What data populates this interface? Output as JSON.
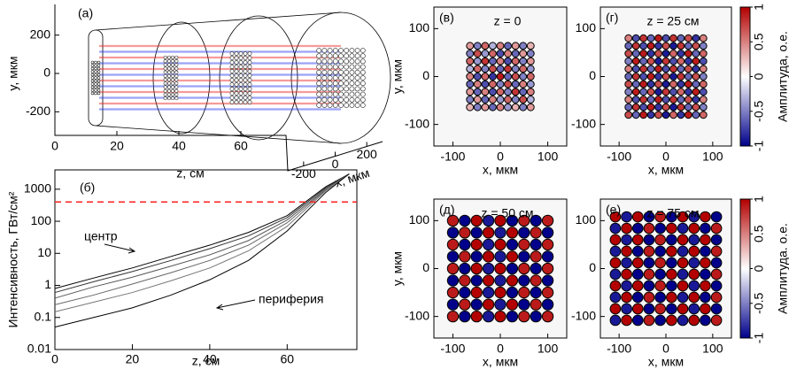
{
  "chart_data": [
    {
      "type": "schematic",
      "panel": "(а)",
      "ylabel": "y, мкм",
      "zlabel": "z, см",
      "xlabel": "x, мкм",
      "ylim": [
        -300,
        300
      ],
      "yticks": [
        -200,
        0,
        200
      ],
      "zlim": [
        0,
        76
      ],
      "zticks": [
        0,
        20,
        40,
        60
      ],
      "xlim": [
        -300,
        300
      ],
      "xticks": [
        -200,
        0,
        200
      ]
    },
    {
      "type": "line",
      "panel": "(б)",
      "xlabel": "z, см",
      "ylabel": "Интенсивность, ГВт/см²",
      "log_y": true,
      "xlim": [
        0,
        78
      ],
      "xticks": [
        0,
        20,
        40,
        60
      ],
      "ylim": [
        0.01,
        4000
      ],
      "yticks": [
        0.01,
        0.1,
        1,
        10,
        100,
        1000
      ],
      "x": [
        0,
        10,
        20,
        30,
        40,
        50,
        60,
        70,
        76
      ],
      "series": [
        {
          "color": "#000000",
          "values": [
            0.8,
            1.7,
            3.5,
            8,
            18,
            45,
            150,
            1200,
            3000
          ]
        },
        {
          "color": "#333333",
          "values": [
            0.6,
            1.3,
            2.7,
            6,
            14,
            35,
            130,
            1100,
            3000
          ]
        },
        {
          "color": "#555555",
          "values": [
            0.4,
            0.9,
            1.8,
            4,
            9,
            25,
            110,
            1000,
            3000
          ]
        },
        {
          "color": "#666666",
          "values": [
            0.25,
            0.5,
            1.1,
            2.5,
            6,
            18,
            90,
            950,
            3000
          ]
        },
        {
          "color": "#777777",
          "values": [
            0.15,
            0.3,
            0.6,
            1.4,
            3.5,
            12,
            70,
            900,
            3000
          ]
        },
        {
          "color": "#000000",
          "values": [
            0.05,
            0.1,
            0.2,
            0.5,
            1.5,
            6,
            50,
            800,
            3000
          ]
        }
      ],
      "threshold": {
        "value": 400,
        "color": "#ff2020"
      },
      "annotations": [
        "центр",
        "периферия"
      ]
    },
    {
      "type": "heatmap",
      "panel": "(в)",
      "annotation": "z = 0",
      "xlabel": "x, мкм",
      "ylabel": "y, мкм",
      "xlim": [
        -140,
        140
      ],
      "xticks": [
        -100,
        0,
        100
      ],
      "ylim": [
        -145,
        145
      ],
      "yticks": [
        -100,
        0,
        100
      ],
      "vlim": [
        -1,
        1
      ],
      "colors": [
        "#00008b",
        "#ffffff",
        "#b30000"
      ],
      "x": [
        -64,
        -48,
        -32,
        -16,
        0,
        16,
        32,
        48,
        64
      ],
      "y": [
        64,
        48,
        32,
        16,
        0,
        -16,
        -32,
        -48,
        -64
      ],
      "values": [
        [
          0.4,
          -0.5,
          0.6,
          -0.3,
          0.5,
          -0.6,
          0.4,
          -0.5,
          0.3
        ],
        [
          -0.5,
          0.7,
          -0.4,
          0.6,
          -0.7,
          0.5,
          -0.6,
          0.4,
          -0.5
        ],
        [
          0.6,
          -0.4,
          0.8,
          -0.6,
          0.5,
          -0.7,
          0.6,
          -0.5,
          0.4
        ],
        [
          -0.3,
          0.6,
          -0.5,
          0.7,
          -0.6,
          0.8,
          -0.5,
          0.6,
          -0.4
        ],
        [
          0.5,
          -0.7,
          0.6,
          -0.8,
          0.9,
          -0.6,
          0.7,
          -0.5,
          0.6
        ],
        [
          -0.6,
          0.5,
          -0.7,
          0.6,
          -0.5,
          0.7,
          -0.6,
          0.5,
          -0.4
        ],
        [
          0.4,
          -0.6,
          0.5,
          -0.7,
          0.6,
          -0.5,
          0.8,
          -0.6,
          0.5
        ],
        [
          -0.5,
          0.4,
          -0.6,
          0.5,
          -0.4,
          0.6,
          -0.5,
          0.7,
          -0.3
        ],
        [
          0.3,
          -0.5,
          0.4,
          -0.6,
          0.5,
          -0.4,
          0.3,
          -0.5,
          0.4
        ]
      ]
    },
    {
      "type": "heatmap",
      "panel": "(г)",
      "annotation": "z = 25 см",
      "xlabel": "x, мкм",
      "xlim": [
        -140,
        140
      ],
      "xticks": [
        -100,
        0,
        100
      ],
      "ylim": [
        -145,
        145
      ],
      "yticks": [
        -100,
        0,
        100
      ],
      "vlim": [
        -1,
        1
      ],
      "colors": [
        "#00008b",
        "#ffffff",
        "#b30000"
      ],
      "colorbar": {
        "label": "Амплитуда, о.е.",
        "ticks": [
          -1,
          -0.5,
          0,
          0.5,
          1
        ]
      },
      "x": [
        -80,
        -64,
        -48,
        -32,
        -16,
        0,
        16,
        32,
        48,
        64,
        80
      ],
      "y": [
        80,
        64,
        48,
        32,
        16,
        0,
        -16,
        -32,
        -48,
        -64,
        -80
      ],
      "values": [
        [
          0.5,
          -0.7,
          0.8,
          -0.6,
          0.9,
          -0.7,
          0.8,
          -0.6,
          0.7,
          -0.8,
          0.5
        ],
        [
          -0.6,
          0.8,
          -0.7,
          0.9,
          -0.8,
          0.7,
          -0.9,
          0.8,
          -0.6,
          0.7,
          -0.5
        ],
        [
          0.7,
          -0.6,
          0.9,
          -0.8,
          0.7,
          -0.9,
          0.6,
          -0.8,
          0.9,
          -0.6,
          0.6
        ],
        [
          -0.5,
          0.9,
          -0.6,
          0.7,
          -0.9,
          0.8,
          -0.7,
          0.6,
          -0.8,
          0.9,
          -0.7
        ],
        [
          0.5,
          -0.7,
          0.8,
          -0.6,
          0.9,
          -0.7,
          0.8,
          -0.6,
          0.7,
          -0.8,
          0.5
        ],
        [
          -0.6,
          0.8,
          -0.7,
          0.9,
          -0.8,
          0.7,
          -0.9,
          0.8,
          -0.6,
          0.7,
          -0.5
        ],
        [
          0.7,
          -0.6,
          0.9,
          -0.8,
          0.7,
          -0.9,
          0.6,
          -0.8,
          0.9,
          -0.6,
          0.6
        ],
        [
          -0.5,
          0.9,
          -0.6,
          0.7,
          -0.9,
          0.8,
          -0.7,
          0.6,
          -0.8,
          0.9,
          -0.7
        ],
        [
          0.5,
          -0.7,
          0.8,
          -0.6,
          0.9,
          -0.7,
          0.8,
          -0.6,
          0.7,
          -0.8,
          0.5
        ],
        [
          -0.6,
          0.8,
          -0.7,
          0.9,
          -0.8,
          0.7,
          -0.9,
          0.8,
          -0.6,
          0.7,
          -0.5
        ],
        [
          0.7,
          -0.6,
          0.9,
          -0.8,
          0.7,
          -0.9,
          0.6,
          -0.8,
          0.9,
          -0.6,
          0.6
        ]
      ]
    },
    {
      "type": "heatmap",
      "panel": "(д)",
      "annotation": "z = 50 см",
      "xlabel": "x, мкм",
      "ylabel": "y, мкм",
      "xlim": [
        -140,
        140
      ],
      "xticks": [
        -100,
        0,
        100
      ],
      "ylim": [
        -145,
        145
      ],
      "yticks": [
        -100,
        0,
        100
      ],
      "vlim": [
        -1,
        1
      ],
      "colors": [
        "#00008b",
        "#ffffff",
        "#b30000"
      ],
      "x": [
        -100,
        -75,
        -50,
        -25,
        0,
        25,
        50,
        75,
        100
      ],
      "y": [
        100,
        75,
        50,
        25,
        0,
        -25,
        -50,
        -75,
        -100
      ],
      "values": [
        [
          0.9,
          -1,
          1,
          -0.9,
          1,
          -1,
          0.9,
          -1,
          0.9
        ],
        [
          -1,
          0.9,
          -1,
          1,
          -0.9,
          1,
          -1,
          0.9,
          -1
        ],
        [
          0.9,
          -1,
          1,
          -0.9,
          1,
          -1,
          0.9,
          -1,
          0.9
        ],
        [
          -1,
          0.9,
          -1,
          1,
          -0.9,
          1,
          -1,
          0.9,
          -1
        ],
        [
          0.9,
          -1,
          1,
          -0.9,
          1,
          -1,
          0.9,
          -1,
          0.9
        ],
        [
          -1,
          0.9,
          -1,
          1,
          -0.9,
          1,
          -1,
          0.9,
          -1
        ],
        [
          0.9,
          -1,
          1,
          -0.9,
          1,
          -1,
          0.9,
          -1,
          0.9
        ],
        [
          -1,
          0.9,
          -1,
          1,
          -0.9,
          1,
          -1,
          0.9,
          -1
        ],
        [
          0.9,
          -1,
          1,
          -0.9,
          1,
          -1,
          0.9,
          -1,
          0.9
        ]
      ]
    },
    {
      "type": "heatmap",
      "panel": "(е)",
      "annotation": "z = 75 см",
      "xlabel": "x, мкм",
      "xlim": [
        -140,
        140
      ],
      "xticks": [
        -100,
        0,
        100
      ],
      "ylim": [
        -145,
        145
      ],
      "yticks": [
        -100,
        0,
        100
      ],
      "vlim": [
        -1,
        1
      ],
      "colors": [
        "#00008b",
        "#ffffff",
        "#b30000"
      ],
      "colorbar": {
        "label": "Амплитуда. о.е.",
        "ticks": [
          -1,
          -0.5,
          0,
          0.5,
          1
        ]
      },
      "x": [
        -108,
        -84,
        -60,
        -36,
        -12,
        12,
        36,
        60,
        84,
        108
      ],
      "y": [
        108,
        84,
        60,
        36,
        12,
        -12,
        -36,
        -60,
        -84,
        -108
      ],
      "values": [
        [
          1,
          -0.9,
          1,
          -1,
          0.9,
          -1,
          1,
          -0.9,
          1,
          -1
        ],
        [
          -0.9,
          1,
          -1,
          0.9,
          -1,
          1,
          -0.9,
          1,
          -1,
          0.9
        ],
        [
          1,
          -0.9,
          1,
          -1,
          0.9,
          -1,
          1,
          -0.9,
          1,
          -1
        ],
        [
          -0.9,
          1,
          -1,
          0.9,
          -1,
          1,
          -0.9,
          1,
          -1,
          0.9
        ],
        [
          1,
          -0.9,
          1,
          -1,
          0.9,
          -1,
          1,
          -0.9,
          1,
          -1
        ],
        [
          -0.9,
          1,
          -1,
          0.9,
          -1,
          1,
          -0.9,
          1,
          -1,
          0.9
        ],
        [
          1,
          -0.9,
          1,
          -1,
          0.9,
          -1,
          1,
          -0.9,
          1,
          -1
        ],
        [
          -0.9,
          1,
          -1,
          0.9,
          -1,
          1,
          -0.9,
          1,
          -1,
          0.9
        ],
        [
          1,
          -0.9,
          1,
          -1,
          0.9,
          -1,
          1,
          -0.9,
          1,
          -1
        ],
        [
          -0.9,
          1,
          -1,
          0.9,
          -1,
          1,
          -0.9,
          1,
          -1,
          0.9
        ]
      ]
    }
  ]
}
